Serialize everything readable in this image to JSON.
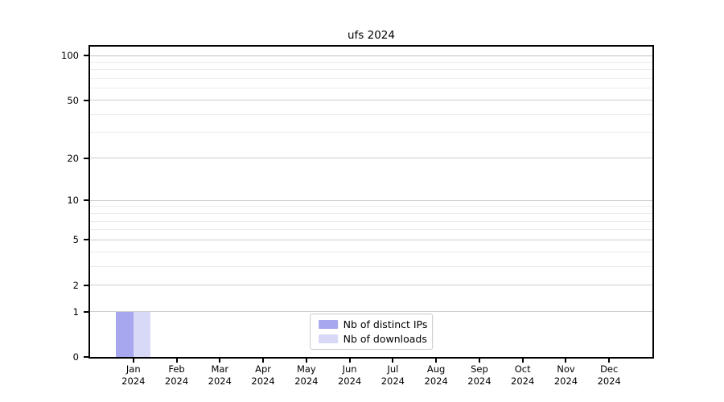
{
  "chart_data": {
    "type": "bar",
    "title": "ufs 2024",
    "categories": [
      "Jan",
      "Feb",
      "Mar",
      "Apr",
      "May",
      "Jun",
      "Jul",
      "Aug",
      "Sep",
      "Oct",
      "Nov",
      "Dec"
    ],
    "category_year": "2024",
    "series": [
      {
        "name": "Nb of distinct IPs",
        "color": "#a7a7f0",
        "values": [
          1,
          0,
          0,
          0,
          0,
          0,
          0,
          0,
          0,
          0,
          0,
          0
        ]
      },
      {
        "name": "Nb of downloads",
        "color": "#d8d8f7",
        "values": [
          1,
          0,
          0,
          0,
          0,
          0,
          0,
          0,
          0,
          0,
          0,
          0
        ]
      }
    ],
    "xlabel": "",
    "ylabel": "",
    "yscale": "symlog",
    "ylim": [
      0,
      100
    ],
    "yticks_major": [
      0,
      1,
      2,
      5,
      10,
      20,
      50,
      100
    ],
    "yticks_minor": [
      3,
      4,
      6,
      7,
      8,
      9,
      30,
      40,
      60,
      70,
      80,
      90
    ],
    "grid": true,
    "legend_position": "lower center"
  },
  "colors": {
    "axis": "#000000",
    "grid_major": "#cccccc",
    "grid_minor": "#ececec",
    "legend_border": "#c9c9c9",
    "text": "#000000",
    "background": "#ffffff"
  }
}
